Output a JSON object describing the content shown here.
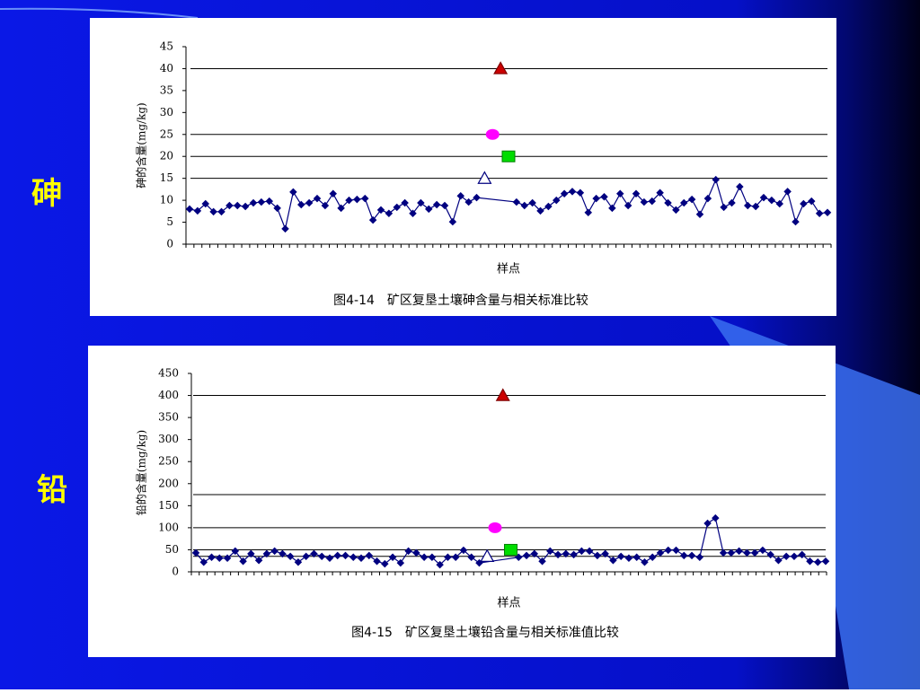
{
  "slide": {
    "labels": [
      "砷",
      "铅"
    ]
  },
  "chart_data": [
    {
      "type": "line",
      "ylabel": "砷的含量(mg/kg)",
      "xlabel": "样点",
      "title": "图4-14　矿区复垦土壤砷含量与相关标准比较",
      "ylim": [
        0,
        45
      ],
      "yticks": [
        0,
        5,
        10,
        15,
        20,
        25,
        30,
        35,
        40,
        45
      ],
      "reference_lines": [
        40,
        25,
        20,
        15
      ],
      "series": [
        {
          "color": "#000080",
          "marker": "diamond",
          "values": [
            8,
            7.6,
            9.2,
            7.4,
            7.4,
            8.8,
            8.8,
            8.6,
            9.4,
            9.6,
            9.8,
            8.2,
            3.5,
            11.9,
            9,
            9.4,
            10.4,
            8.8,
            11.5,
            8.2,
            10,
            10.2,
            10.4,
            5.5,
            7.8,
            7,
            8.4,
            9.4,
            7,
            9.4,
            8,
            9,
            8.8,
            5.1,
            11,
            9.6,
            10.6,
            9.6,
            8.8,
            9.4,
            7.6,
            8.6,
            10,
            11.5,
            12,
            11.7,
            7.2,
            10.4,
            10.8,
            8.2,
            11.5,
            8.8,
            11.5,
            9.6,
            9.8,
            11.7,
            9.4,
            7.8,
            9.4,
            10.2,
            6.8,
            10.4,
            14.7,
            8.4,
            9.4,
            13.1,
            8.8,
            8.6,
            10.6,
            10,
            9.2,
            12,
            5.1,
            9.2,
            9.8,
            7,
            7.2
          ]
        },
        {
          "color": "#000080",
          "marker": "open-triangle",
          "values": [
            15
          ]
        },
        {
          "color": "#ff00ff",
          "marker": "circle",
          "values": [
            25
          ]
        },
        {
          "color": "#cc0000",
          "marker": "triangle",
          "values": [
            40
          ]
        },
        {
          "color": "#00dd00",
          "marker": "square",
          "values": [
            20
          ]
        }
      ]
    },
    {
      "type": "line",
      "ylabel": "铅的含量(mg/kg)",
      "xlabel": "样点",
      "title": "图4-15　矿区复垦土壤铅含量与相关标准值比较",
      "ylim": [
        0,
        450
      ],
      "yticks": [
        0,
        50,
        100,
        150,
        200,
        250,
        300,
        350,
        400,
        450
      ],
      "reference_lines": [
        400,
        175,
        100,
        50,
        35
      ],
      "series": [
        {
          "color": "#000080",
          "marker": "diamond",
          "values": [
            43,
            22,
            33,
            31,
            31,
            47,
            24,
            41,
            26,
            41,
            47,
            41,
            35,
            22,
            35,
            41,
            35,
            31,
            37,
            37,
            33,
            31,
            37,
            24,
            18,
            33,
            20,
            47,
            43,
            33,
            33,
            16,
            33,
            33,
            49,
            33,
            20,
            33,
            37,
            41,
            24,
            47,
            39,
            41,
            39,
            47,
            47,
            37,
            41,
            26,
            35,
            31,
            33,
            22,
            33,
            43,
            49,
            49,
            37,
            37,
            33,
            110,
            122,
            43,
            43,
            47,
            43,
            43,
            49,
            39,
            26,
            35,
            35,
            39,
            24,
            22,
            24
          ]
        },
        {
          "color": "#000080",
          "marker": "open-triangle",
          "values": [
            35
          ]
        },
        {
          "color": "#ff00ff",
          "marker": "circle",
          "values": [
            100
          ]
        },
        {
          "color": "#cc0000",
          "marker": "triangle",
          "values": [
            400
          ]
        },
        {
          "color": "#00dd00",
          "marker": "square",
          "values": [
            50
          ]
        }
      ]
    }
  ]
}
